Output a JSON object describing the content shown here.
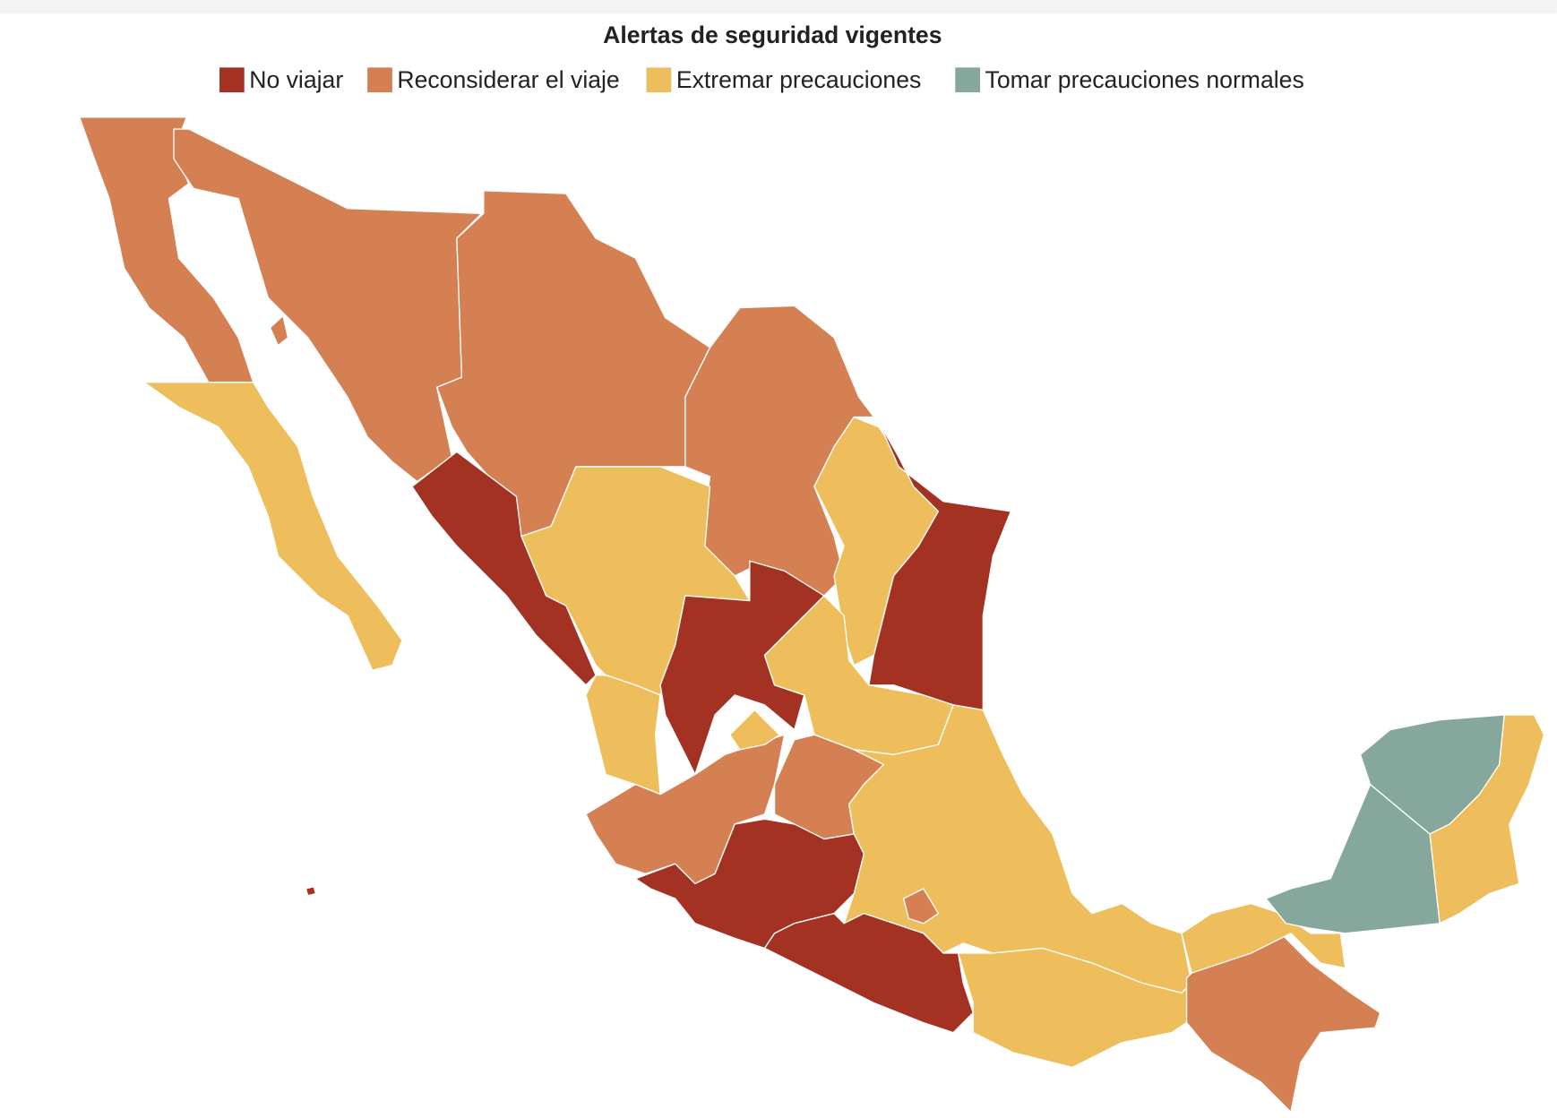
{
  "title": "Alertas de seguridad vigentes",
  "legend": {
    "items": [
      {
        "label": "No viajar",
        "color": "#a33222"
      },
      {
        "label": "Reconsiderar el viaje",
        "color": "#d58052"
      },
      {
        "label": "Extremar precauciones",
        "color": "#efbe5c"
      },
      {
        "label": "Tomar precauciones normales",
        "color": "#86a89c"
      }
    ]
  }
}
